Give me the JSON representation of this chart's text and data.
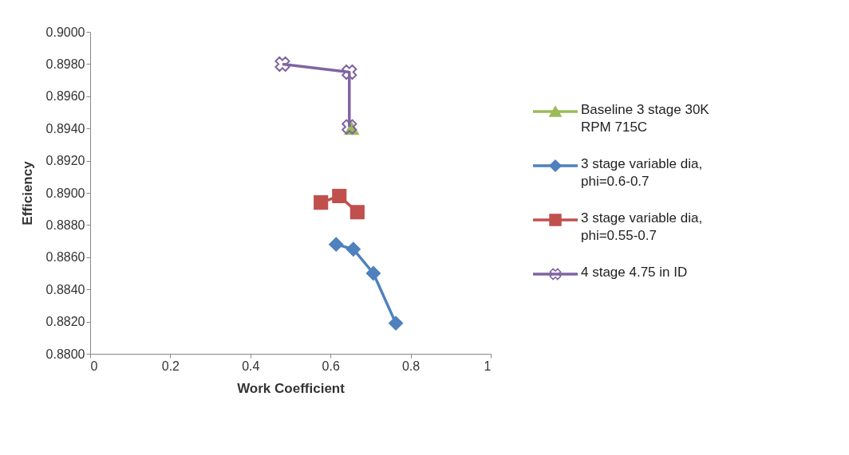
{
  "chart_data": {
    "type": "line",
    "xlabel": "Work Coefficient",
    "ylabel": "Efficiency",
    "xlim": [
      0,
      1
    ],
    "xticks": [
      0,
      0.2,
      0.4,
      0.6,
      0.8,
      1
    ],
    "ylim": [
      0.88,
      0.9
    ],
    "yticks": [
      {
        "value": 0.88,
        "label": "0.8800"
      },
      {
        "value": 0.882,
        "label": "0.8820"
      },
      {
        "value": 0.884,
        "label": "0.8840"
      },
      {
        "value": 0.886,
        "label": "0.8860"
      },
      {
        "value": 0.888,
        "label": "0.8880"
      },
      {
        "value": 0.89,
        "label": "0.8900"
      },
      {
        "value": 0.892,
        "label": "0.8920"
      },
      {
        "value": 0.894,
        "label": "0.8940"
      },
      {
        "value": 0.896,
        "label": "0.8960"
      },
      {
        "value": 0.898,
        "label": "0.8980"
      },
      {
        "value": 0.9,
        "label": "0.9000"
      }
    ],
    "grid": false,
    "legend": "right",
    "series": [
      {
        "name": "Baseline 3 stage 30K RPM 715C",
        "color": "#9bbb59",
        "marker": "triangle",
        "x": [
          0.653
        ],
        "values": [
          0.894
        ]
      },
      {
        "name": "3 stage variable dia, phi=0.6-0.7",
        "color": "#4f81bd",
        "marker": "diamond",
        "x": [
          0.614,
          0.657,
          0.707,
          0.763
        ],
        "values": [
          0.8868,
          0.8865,
          0.885,
          0.8819
        ]
      },
      {
        "name": "3 stage variable dia, phi=0.55-0.7",
        "color": "#c0504d",
        "marker": "square",
        "x": [
          0.576,
          0.622,
          0.667
        ],
        "values": [
          0.8894,
          0.8898,
          0.8888
        ]
      },
      {
        "name": "4 stage 4.75 in ID",
        "color": "#8064a2",
        "marker": "cross",
        "x": [
          0.48,
          0.647,
          0.647
        ],
        "values": [
          0.898,
          0.8975,
          0.8941
        ]
      }
    ]
  }
}
